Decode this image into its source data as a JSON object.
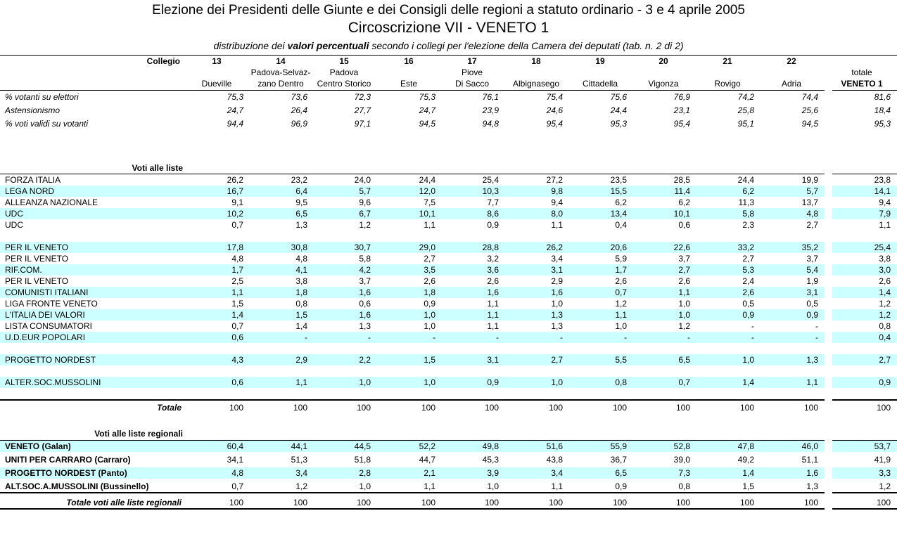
{
  "header": {
    "title": "Elezione dei Presidenti delle Giunte e dei Consigli delle regioni a statuto ordinario - 3 e 4 aprile 2005",
    "subtitle": "Circoscrizione VII - VENETO 1",
    "description": [
      "distribuzione dei ",
      "valori percentuali",
      " secondo i collegi per l'elezione della Camera dei deputati (tab. n. 2 di 2)"
    ]
  },
  "table": {
    "collegio_label": "Collegio",
    "columns": [
      {
        "number": "13",
        "name": [
          "Dueville"
        ]
      },
      {
        "number": "14",
        "name": [
          "Padova-Selvaz-",
          "zano Dentro"
        ]
      },
      {
        "number": "15",
        "name": [
          "Padova",
          "Centro Storico"
        ]
      },
      {
        "number": "16",
        "name": [
          "Este"
        ]
      },
      {
        "number": "17",
        "name": [
          "Piove",
          "Di Sacco"
        ]
      },
      {
        "number": "18",
        "name": [
          "Albignasego"
        ]
      },
      {
        "number": "19",
        "name": [
          "Cittadella"
        ]
      },
      {
        "number": "20",
        "name": [
          "Vigonza"
        ]
      },
      {
        "number": "21",
        "name": [
          "Rovigo"
        ]
      },
      {
        "number": "22",
        "name": [
          "Adria"
        ]
      },
      {
        "name": [
          "totale",
          "VENETO 1"
        ]
      }
    ],
    "stats": [
      {
        "label": "% votanti su elettori",
        "values": [
          "75,3",
          "73,6",
          "72,3",
          "75,3",
          "76,1",
          "75,4",
          "75,6",
          "76,9",
          "74,2",
          "74,4",
          "81,6"
        ]
      },
      {
        "label": "Astensionismo",
        "values": [
          "24,7",
          "26,4",
          "27,7",
          "24,7",
          "23,9",
          "24,6",
          "24,4",
          "23,1",
          "25,8",
          "25,6",
          "18,4"
        ]
      },
      {
        "label": "% voti validi su votanti",
        "values": [
          "94,4",
          "96,9",
          "97,1",
          "94,5",
          "94,8",
          "95,4",
          "95,3",
          "95,4",
          "95,1",
          "94,5",
          "95,3"
        ]
      }
    ],
    "lists": {
      "title": "Voti alle liste",
      "groups": [
        [
          {
            "label": "FORZA ITALIA",
            "values": [
              "26,2",
              "23,2",
              "24,0",
              "24,4",
              "25,4",
              "27,2",
              "23,5",
              "28,5",
              "24,4",
              "19,9",
              "23,8"
            ]
          },
          {
            "label": "LEGA NORD",
            "values": [
              "16,7",
              "6,4",
              "5,7",
              "12,0",
              "10,3",
              "9,8",
              "15,5",
              "11,4",
              "6,2",
              "5,7",
              "14,1"
            ]
          },
          {
            "label": "ALLEANZA NAZIONALE",
            "values": [
              "9,1",
              "9,5",
              "9,6",
              "7,5",
              "7,7",
              "9,4",
              "6,2",
              "6,2",
              "11,3",
              "13,7",
              "9,4"
            ]
          },
          {
            "label": "UDC",
            "values": [
              "10,2",
              "6,5",
              "6,7",
              "10,1",
              "8,6",
              "8,0",
              "13,4",
              "10,1",
              "5,8",
              "4,8",
              "7,9"
            ]
          },
          {
            "label": "UDC",
            "values": [
              "0,7",
              "1,3",
              "1,2",
              "1,1",
              "0,9",
              "1,1",
              "0,4",
              "0,6",
              "2,3",
              "2,7",
              "1,1"
            ]
          }
        ],
        [
          {
            "label": "PER IL VENETO",
            "values": [
              "17,8",
              "30,8",
              "30,7",
              "29,0",
              "28,8",
              "26,2",
              "20,6",
              "22,6",
              "33,2",
              "35,2",
              "25,4"
            ]
          },
          {
            "label": "PER IL VENETO",
            "values": [
              "4,8",
              "4,8",
              "5,8",
              "2,7",
              "3,2",
              "3,4",
              "5,9",
              "3,7",
              "2,7",
              "3,7",
              "3,8"
            ]
          },
          {
            "label": "RIF.COM.",
            "values": [
              "1,7",
              "4,1",
              "4,2",
              "3,5",
              "3,6",
              "3,1",
              "1,7",
              "2,7",
              "5,3",
              "5,4",
              "3,0"
            ]
          },
          {
            "label": "PER IL VENETO",
            "values": [
              "2,5",
              "3,8",
              "3,7",
              "2,6",
              "2,6",
              "2,9",
              "2,6",
              "2,6",
              "2,4",
              "1,9",
              "2,6"
            ]
          },
          {
            "label": "COMUNISTI ITALIANI",
            "values": [
              "1,1",
              "1,8",
              "1,6",
              "1,8",
              "1,6",
              "1,6",
              "0,7",
              "1,1",
              "2,6",
              "3,1",
              "1,4"
            ]
          },
          {
            "label": "LIGA FRONTE VENETO",
            "values": [
              "1,5",
              "0,8",
              "0,6",
              "0,9",
              "1,1",
              "1,0",
              "1,2",
              "1,0",
              "0,5",
              "0,5",
              "1,2"
            ]
          },
          {
            "label": "L'ITALIA DEI VALORI",
            "values": [
              "1,4",
              "1,5",
              "1,6",
              "1,0",
              "1,1",
              "1,3",
              "1,1",
              "1,0",
              "0,9",
              "0,9",
              "1,2"
            ]
          },
          {
            "label": "LISTA CONSUMATORI",
            "values": [
              "0,7",
              "1,4",
              "1,3",
              "1,0",
              "1,1",
              "1,3",
              "1,0",
              "1,2",
              "-",
              "-",
              "0,8"
            ]
          },
          {
            "label": "U.D.EUR POPOLARI",
            "values": [
              "0,6",
              "-",
              "-",
              "-",
              "-",
              "-",
              "-",
              "-",
              "-",
              "-",
              "0,4"
            ]
          }
        ],
        [
          {
            "label": "PROGETTO NORDEST",
            "values": [
              "4,3",
              "2,9",
              "2,2",
              "1,5",
              "3,1",
              "2,7",
              "5,5",
              "6,5",
              "1,0",
              "1,3",
              "2,7"
            ]
          }
        ],
        [
          {
            "label": "ALTER.SOC.MUSSOLINI",
            "values": [
              "0,6",
              "1,1",
              "1,0",
              "1,0",
              "0,9",
              "1,0",
              "0,8",
              "0,7",
              "1,4",
              "1,1",
              "0,9"
            ]
          }
        ]
      ],
      "total": {
        "label": "Totale",
        "values": [
          "100",
          "100",
          "100",
          "100",
          "100",
          "100",
          "100",
          "100",
          "100",
          "100",
          "100"
        ]
      }
    },
    "regional": {
      "title": "Voti alle liste regionali",
      "rows": [
        {
          "label": "VENETO (Galan)",
          "values": [
            "60,4",
            "44,1",
            "44,5",
            "52,2",
            "49,8",
            "51,6",
            "55,9",
            "52,8",
            "47,8",
            "46,0",
            "53,7"
          ]
        },
        {
          "label": "UNITI PER CARRARO (Carraro)",
          "values": [
            "34,1",
            "51,3",
            "51,8",
            "44,7",
            "45,3",
            "43,8",
            "36,7",
            "39,0",
            "49,2",
            "51,1",
            "41,9"
          ]
        },
        {
          "label": "PROGETTO NORDEST (Panto)",
          "values": [
            "4,8",
            "3,4",
            "2,8",
            "2,1",
            "3,9",
            "3,4",
            "6,5",
            "7,3",
            "1,4",
            "1,6",
            "3,3"
          ]
        },
        {
          "label": "ALT.SOC.A.MUSSOLINI (Bussinello)",
          "values": [
            "0,7",
            "1,2",
            "1,0",
            "1,1",
            "1,0",
            "1,1",
            "0,9",
            "0,8",
            "1,5",
            "1,3",
            "1,2"
          ]
        }
      ],
      "total": {
        "label": "Totale voti alle liste regionali",
        "values": [
          "100",
          "100",
          "100",
          "100",
          "100",
          "100",
          "100",
          "100",
          "100",
          "100",
          "100"
        ]
      }
    }
  }
}
